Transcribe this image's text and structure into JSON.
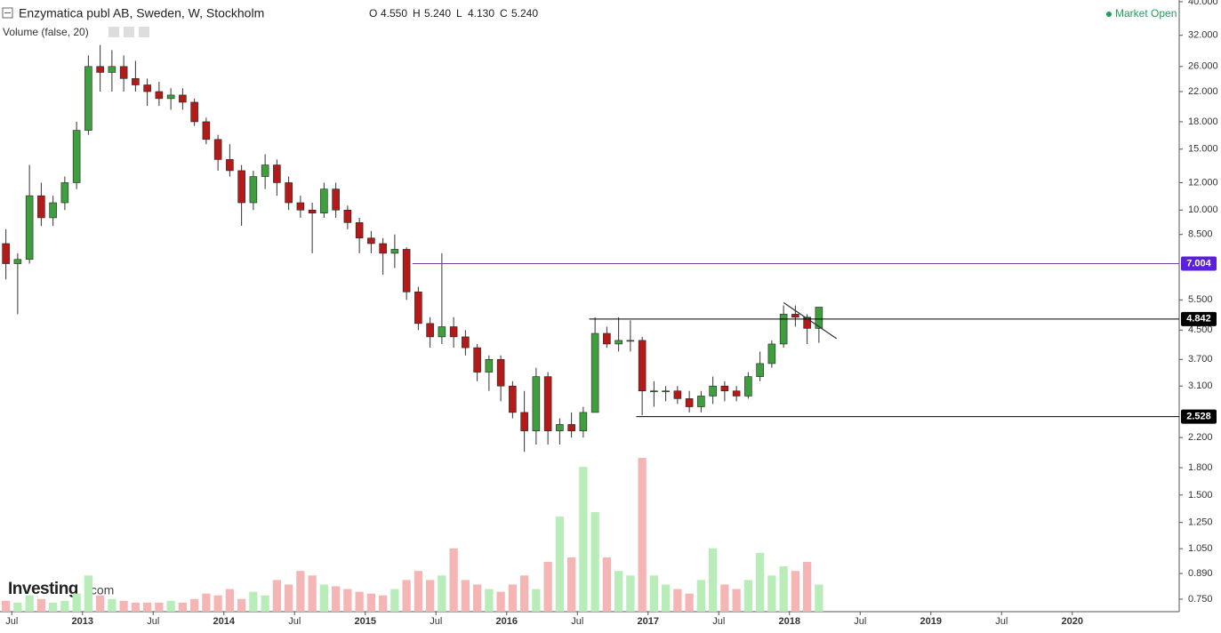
{
  "header": {
    "title": "Enzymatica publ AB, Sweden, W, Stockholm",
    "ohlc": [
      {
        "name": "O",
        "value": 4.55,
        "label": "4.550"
      },
      {
        "name": "H",
        "value": 5.24,
        "label": "5.240"
      },
      {
        "name": "L",
        "value": 4.13,
        "label": "4.130"
      },
      {
        "name": "C",
        "value": 5.24,
        "label": "5.240"
      }
    ],
    "indicator": "Volume (false, 20)",
    "status": "Market Open",
    "logo": "Investing",
    "logo_suffix": ".com"
  },
  "chart_data": {
    "type": "candlestick",
    "log_scale": true,
    "grid": false,
    "up_color": "#3f9f3f",
    "down_color": "#b51a1a",
    "volume_up_color": "#b8ecb8",
    "volume_down_color": "#f5b5b5",
    "x": [
      "2012-06",
      "2012-07",
      "2012-08",
      "2012-09",
      "2012-10",
      "2012-11",
      "2012-12",
      "2013-01",
      "2013-02",
      "2013-03",
      "2013-04",
      "2013-05",
      "2013-06",
      "2013-07",
      "2013-08",
      "2013-09",
      "2013-10",
      "2013-11",
      "2013-12",
      "2014-01",
      "2014-02",
      "2014-03",
      "2014-04",
      "2014-05",
      "2014-06",
      "2014-07",
      "2014-08",
      "2014-09",
      "2014-10",
      "2014-11",
      "2014-12",
      "2015-01",
      "2015-02",
      "2015-03",
      "2015-04",
      "2015-05",
      "2015-06",
      "2015-07",
      "2015-08",
      "2015-09",
      "2015-10",
      "2015-11",
      "2015-12",
      "2016-01",
      "2016-02",
      "2016-03",
      "2016-04",
      "2016-05",
      "2016-06",
      "2016-07",
      "2016-08",
      "2016-09",
      "2016-10",
      "2016-11",
      "2016-12",
      "2017-01",
      "2017-02",
      "2017-03",
      "2017-04",
      "2017-05",
      "2017-06",
      "2017-07",
      "2017-08",
      "2017-09",
      "2017-10",
      "2017-11",
      "2017-12",
      "2018-01",
      "2018-02",
      "2018-03"
    ],
    "open": [
      8,
      7,
      7.2,
      11,
      9.5,
      10.5,
      12,
      17,
      26,
      25,
      26,
      24,
      23,
      22,
      21,
      21.5,
      20.5,
      18,
      16,
      14,
      13,
      10.5,
      12.5,
      13.5,
      12,
      10.5,
      10,
      9.8,
      11.5,
      10,
      9.2,
      8.3,
      8,
      7.5,
      7.7,
      5.8,
      4.7,
      4.3,
      4.6,
      4.3,
      4.0,
      3.4,
      3.7,
      3.1,
      2.6,
      2.3,
      3.3,
      2.3,
      2.4,
      2.3,
      2.6,
      4.4,
      4.1,
      4.2,
      4.2,
      3.0,
      3.0,
      3.0,
      2.85,
      2.7,
      2.9,
      3.1,
      3.0,
      2.9,
      3.3,
      3.6,
      4.1,
      5.0,
      4.9,
      4.55
    ],
    "high": [
      8.8,
      7.5,
      13.5,
      12,
      11,
      12.5,
      18,
      28,
      30,
      29,
      28,
      27,
      24,
      23.5,
      22.5,
      22.5,
      21,
      18.5,
      16.5,
      15.5,
      13.5,
      13,
      14.5,
      14,
      12.5,
      11,
      10.5,
      12,
      12,
      10.3,
      9.5,
      8.7,
      8.3,
      8.5,
      7.8,
      6,
      4.9,
      7.5,
      4.9,
      4.5,
      4.1,
      3.8,
      3.8,
      3.2,
      3.0,
      3.5,
      3.4,
      2.5,
      2.6,
      2.7,
      4.9,
      4.6,
      4.9,
      4.8,
      4.3,
      3.2,
      3.1,
      3.1,
      3.0,
      3.0,
      3.3,
      3.2,
      3.1,
      3.4,
      3.9,
      4.2,
      5.3,
      5.3,
      5.0,
      5.24
    ],
    "low": [
      6.3,
      5.0,
      7.0,
      9,
      9,
      10,
      11.5,
      16.5,
      22,
      22,
      22,
      22,
      20,
      20,
      19.5,
      19.5,
      17.5,
      15.5,
      13,
      12.5,
      9,
      10,
      11.5,
      11,
      10,
      9.5,
      7.5,
      9.5,
      9.5,
      8.8,
      7.5,
      7.5,
      6.5,
      6.8,
      5.5,
      4.5,
      4.0,
      4.1,
      4.0,
      3.8,
      3.2,
      3.0,
      2.8,
      2.5,
      2.0,
      2.1,
      2.1,
      2.1,
      2.2,
      2.2,
      2.6,
      4.0,
      3.9,
      3.9,
      2.55,
      2.7,
      2.8,
      2.75,
      2.6,
      2.6,
      2.75,
      2.8,
      2.8,
      2.85,
      3.2,
      3.5,
      4.0,
      4.6,
      4.1,
      4.13
    ],
    "close": [
      7,
      7.2,
      11,
      9.5,
      10.5,
      12,
      17,
      26,
      25,
      26,
      24,
      23,
      22,
      21,
      21.5,
      20.5,
      18,
      16,
      14,
      13,
      10.5,
      12.5,
      13.5,
      12,
      10.5,
      10,
      9.8,
      11.5,
      10,
      9.2,
      8.3,
      8,
      7.5,
      7.7,
      5.8,
      4.7,
      4.3,
      4.6,
      4.3,
      4.0,
      3.4,
      3.7,
      3.1,
      2.6,
      2.3,
      3.3,
      2.3,
      2.4,
      2.3,
      2.6,
      4.4,
      4.1,
      4.2,
      4.2,
      3.0,
      3.0,
      3.0,
      2.85,
      2.7,
      2.9,
      3.1,
      3.0,
      2.9,
      3.3,
      3.6,
      4.1,
      5.0,
      4.9,
      4.55,
      5.24
    ],
    "volume": [
      12,
      10,
      18,
      14,
      10,
      12,
      20,
      40,
      18,
      14,
      12,
      10,
      10,
      10,
      12,
      10,
      14,
      20,
      18,
      25,
      14,
      22,
      18,
      35,
      30,
      45,
      40,
      30,
      28,
      25,
      22,
      20,
      18,
      25,
      35,
      45,
      35,
      40,
      70,
      35,
      30,
      25,
      22,
      30,
      40,
      25,
      55,
      105,
      60,
      160,
      110,
      60,
      45,
      40,
      170,
      40,
      30,
      25,
      20,
      35,
      70,
      30,
      25,
      35,
      65,
      40,
      50,
      45,
      55,
      30
    ],
    "xlim": [
      "2012-06",
      "2020-10"
    ],
    "xticks": [
      {
        "value": "2012-07",
        "label": "Jul"
      },
      {
        "value": "2013-01",
        "label": "2013"
      },
      {
        "value": "2013-07",
        "label": "Jul"
      },
      {
        "value": "2014-01",
        "label": "2014"
      },
      {
        "value": "2014-07",
        "label": "Jul"
      },
      {
        "value": "2015-01",
        "label": "2015"
      },
      {
        "value": "2015-07",
        "label": "Jul"
      },
      {
        "value": "2016-01",
        "label": "2016"
      },
      {
        "value": "2016-07",
        "label": "Jul"
      },
      {
        "value": "2017-01",
        "label": "2017"
      },
      {
        "value": "2017-07",
        "label": "Jul"
      },
      {
        "value": "2018-01",
        "label": "2018"
      },
      {
        "value": "2018-07",
        "label": "Jul"
      },
      {
        "value": "2019-01",
        "label": "2019"
      },
      {
        "value": "2019-07",
        "label": "Jul"
      },
      {
        "value": "2020-01",
        "label": "2020"
      }
    ],
    "ylim": [
      0.75,
      40
    ],
    "yticks": [
      {
        "value": 40,
        "label": "40.000"
      },
      {
        "value": 32,
        "label": "32.000"
      },
      {
        "value": 26,
        "label": "26.000"
      },
      {
        "value": 22,
        "label": "22.000"
      },
      {
        "value": 18,
        "label": "18.000"
      },
      {
        "value": 15,
        "label": "15.000"
      },
      {
        "value": 12,
        "label": "12.000"
      },
      {
        "value": 10,
        "label": "10.000"
      },
      {
        "value": 8.5,
        "label": "8.500"
      },
      {
        "value": 5.5,
        "label": "5.500"
      },
      {
        "value": 4.5,
        "label": "4.500"
      },
      {
        "value": 3.7,
        "label": "3.700"
      },
      {
        "value": 3.1,
        "label": "3.100"
      },
      {
        "value": 2.2,
        "label": "2.200"
      },
      {
        "value": 1.8,
        "label": "1.800"
      },
      {
        "value": 1.5,
        "label": "1.500"
      },
      {
        "value": 1.25,
        "label": "1.250"
      },
      {
        "value": 1.05,
        "label": "1.050"
      },
      {
        "value": 0.89,
        "label": "0.890"
      },
      {
        "value": 0.75,
        "label": "0.750"
      }
    ],
    "hlines": [
      {
        "value": 7.004,
        "from": "2015-05",
        "color": "#7b3fa0",
        "tag_color": "#5b1fe0"
      },
      {
        "value": 4.842,
        "from": "2016-08",
        "color": "#000000",
        "tag_color": "#000000"
      },
      {
        "value": 2.528,
        "from": "2016-12",
        "color": "#000000",
        "tag_color": "#000000"
      }
    ],
    "trendline": {
      "x": [
        "2017-12",
        "2018-05"
      ],
      "values": [
        5.4,
        4.25
      ],
      "color": "#333333"
    }
  }
}
